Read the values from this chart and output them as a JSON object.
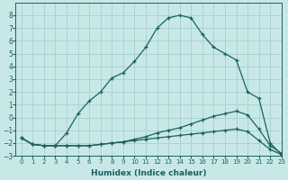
{
  "title": "",
  "xlabel": "Humidex (Indice chaleur)",
  "ylabel": "",
  "background_color": "#c8e8e8",
  "grid_color": "#a8cece",
  "line_color": "#1a6060",
  "xlim": [
    -0.5,
    23
  ],
  "ylim": [
    -3,
    9
  ],
  "xticks": [
    0,
    1,
    2,
    3,
    4,
    5,
    6,
    7,
    8,
    9,
    10,
    11,
    12,
    13,
    14,
    15,
    16,
    17,
    18,
    19,
    20,
    21,
    22,
    23
  ],
  "yticks": [
    -3,
    -2,
    -1,
    0,
    1,
    2,
    3,
    4,
    5,
    6,
    7,
    8
  ],
  "line1_x": [
    0,
    1,
    2,
    3,
    4,
    5,
    6,
    7,
    8,
    9,
    10,
    11,
    12,
    13,
    14,
    15,
    16,
    17,
    18,
    19,
    20,
    21,
    22,
    23
  ],
  "line1_y": [
    -1.6,
    -2.1,
    -2.2,
    -2.2,
    -2.2,
    -2.2,
    -2.2,
    -2.1,
    -2.0,
    -1.9,
    -1.7,
    -1.5,
    -1.2,
    -1.0,
    -0.8,
    -0.5,
    -0.2,
    0.1,
    0.3,
    0.5,
    0.2,
    -0.9,
    -2.2,
    -2.8
  ],
  "line2_x": [
    0,
    1,
    2,
    3,
    4,
    5,
    6,
    7,
    8,
    9,
    10,
    11,
    12,
    13,
    14,
    15,
    16,
    17,
    18,
    19,
    20,
    21,
    22,
    23
  ],
  "line2_y": [
    -1.6,
    -2.1,
    -2.2,
    -2.2,
    -2.2,
    -2.2,
    -2.2,
    -2.1,
    -2.0,
    -1.9,
    -1.8,
    -1.7,
    -1.6,
    -1.5,
    -1.4,
    -1.3,
    -1.2,
    -1.1,
    -1.0,
    -0.9,
    -1.1,
    -1.8,
    -2.5,
    -2.9
  ],
  "line3_x": [
    0,
    1,
    2,
    3,
    4,
    5,
    6,
    7,
    8,
    9,
    10,
    11,
    12,
    13,
    14,
    15,
    16,
    17,
    18,
    19,
    20,
    21,
    22,
    23
  ],
  "line3_y": [
    -1.6,
    -2.1,
    -2.2,
    -2.2,
    -1.2,
    0.3,
    1.3,
    2.0,
    3.1,
    3.5,
    4.4,
    5.5,
    7.0,
    7.8,
    8.0,
    7.8,
    6.5,
    5.5,
    5.0,
    4.5,
    2.0,
    1.5,
    -2.0,
    -2.9
  ]
}
